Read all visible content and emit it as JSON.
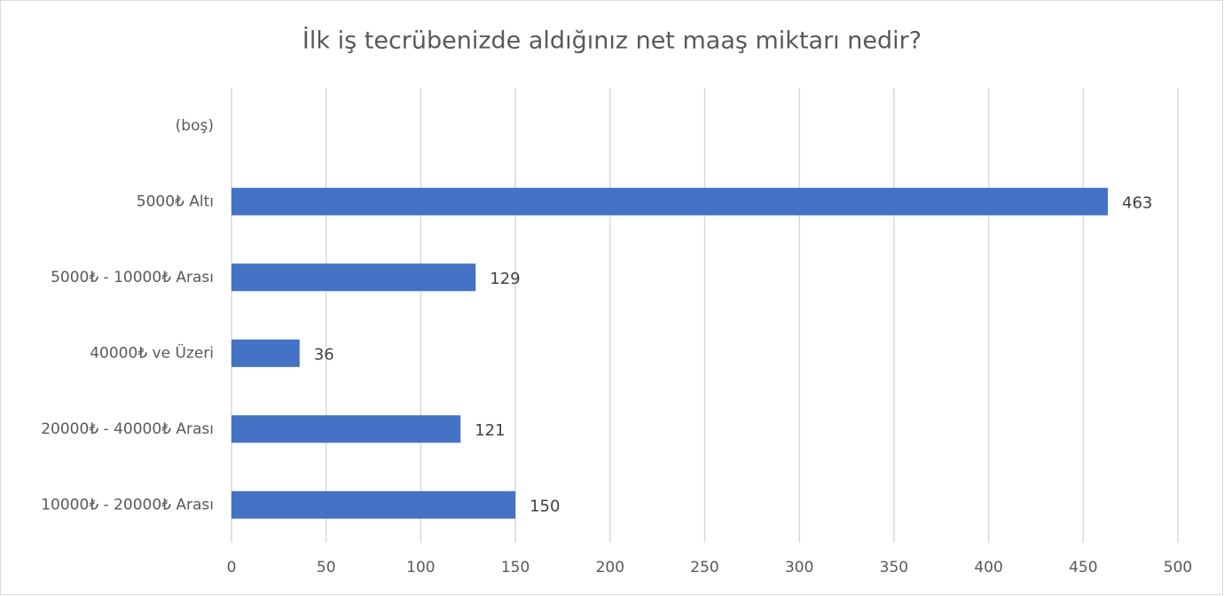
{
  "chart_data": {
    "type": "bar",
    "orientation": "horizontal",
    "title": "İlk iş tecrübenizde aldığınız net maaş miktarı nedir?",
    "categories": [
      "(boş)",
      "5000₺ Altı",
      "5000₺ - 10000₺ Arası",
      "40000₺ ve Üzeri",
      "20000₺ - 40000₺ Arası",
      "10000₺ - 20000₺ Arası"
    ],
    "values": [
      null,
      463,
      129,
      36,
      121,
      150
    ],
    "color": "#4472c4",
    "xlim": [
      0,
      500
    ],
    "xticks": [
      0,
      50,
      100,
      150,
      200,
      250,
      300,
      350,
      400,
      450,
      500
    ],
    "grid": true
  }
}
